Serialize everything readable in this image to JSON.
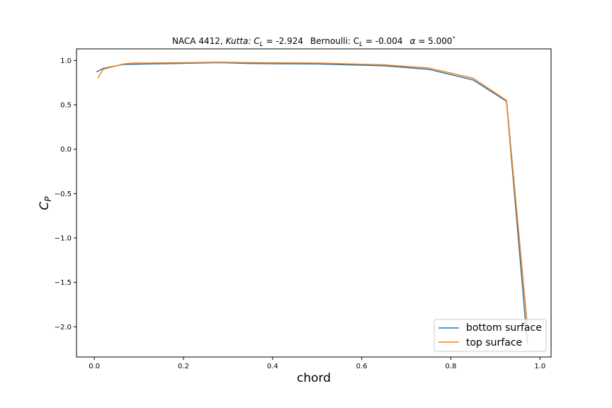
{
  "chart_data": {
    "type": "line",
    "title": {
      "prefix": "NACA 4412, ",
      "kutta_label": "Kutta",
      "kutta_cl": ": C",
      "kutta_cl_sub": "L",
      "kutta_value": " = -2.924",
      "bernoulli_label": "Bernoulli: C",
      "bernoulli_cl_sub": "L",
      "bernoulli_value": " = -0.004",
      "alpha_symbol": "α",
      "alpha_value": " = 5.000",
      "degree": "°"
    },
    "xlabel": "chord",
    "ylabel": {
      "base": "C",
      "sub": "P"
    },
    "xlim": [
      -0.04,
      1.025
    ],
    "ylim": [
      -2.34,
      1.13
    ],
    "xticks": [
      0.0,
      0.2,
      0.4,
      0.6,
      0.8,
      1.0
    ],
    "xtick_labels": [
      "0.0",
      "0.2",
      "0.4",
      "0.6",
      "0.8",
      "1.0"
    ],
    "yticks": [
      1.0,
      0.5,
      0.0,
      -0.5,
      -1.0,
      -1.5,
      -2.0
    ],
    "ytick_labels": [
      "1.0",
      "0.5",
      "0.0",
      "−0.5",
      "−1.0",
      "−1.5",
      "−2.0"
    ],
    "legend_position": "lower right",
    "series": [
      {
        "name": "bottom surface",
        "color": "#1f77b4",
        "x": [
          0.005,
          0.02,
          0.065,
          0.12,
          0.28,
          0.35,
          0.5,
          0.65,
          0.75,
          0.85,
          0.925,
          0.972
        ],
        "y": [
          0.87,
          0.91,
          0.955,
          0.96,
          0.975,
          0.965,
          0.96,
          0.94,
          0.9,
          0.78,
          0.54,
          -2.2
        ]
      },
      {
        "name": "top surface",
        "color": "#ff7f0e",
        "x": [
          0.008,
          0.02,
          0.065,
          0.085,
          0.12,
          0.28,
          0.35,
          0.5,
          0.65,
          0.75,
          0.85,
          0.925,
          0.972
        ],
        "y": [
          0.8,
          0.9,
          0.96,
          0.97,
          0.97,
          0.98,
          0.975,
          0.97,
          0.95,
          0.915,
          0.8,
          0.55,
          -2.0
        ]
      }
    ]
  }
}
